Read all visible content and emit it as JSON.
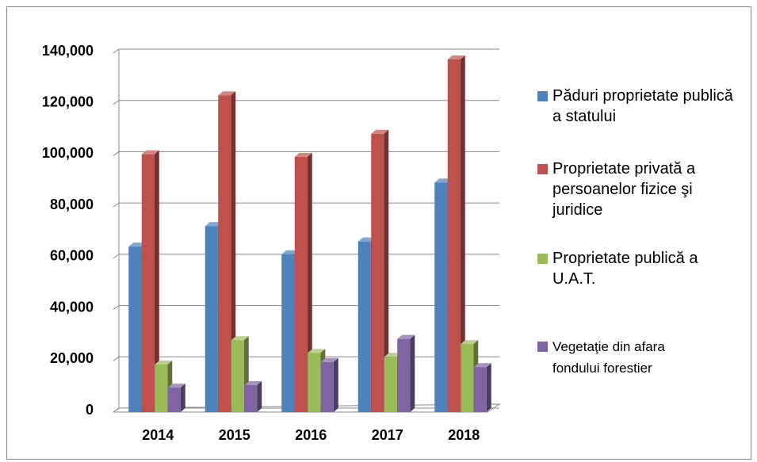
{
  "chart_data": {
    "type": "bar3d",
    "categories": [
      "2014",
      "2015",
      "2016",
      "2017",
      "2018"
    ],
    "series": [
      {
        "name": "Păduri proprietate publică a statului",
        "color": "#4f81bd",
        "values": [
          63000,
          71000,
          60000,
          65000,
          88000
        ]
      },
      {
        "name": "Proprietate privată a persoanelor fizice şi juridice",
        "color": "#c0504d",
        "values": [
          99000,
          122000,
          98000,
          107000,
          136000
        ]
      },
      {
        "name": "Proprietate publică a U.A.T.",
        "color": "#9bbb59",
        "values": [
          17000,
          26500,
          21500,
          20000,
          25000
        ]
      },
      {
        "name": "Vegetaţie din afara fondului forestier",
        "color": "#8064a2",
        "values": [
          8000,
          9000,
          18000,
          27000,
          16000
        ]
      }
    ],
    "ylim": [
      0,
      140000
    ],
    "yticks": [
      0,
      {
        "value": 20000,
        "label": "20,000"
      },
      {
        "value": 40000,
        "label": "40,000"
      },
      {
        "value": 60000,
        "label": "60,000"
      },
      {
        "value": 80000,
        "label": "80,000"
      },
      {
        "value": 100000,
        "label": "100,000"
      },
      {
        "value": 120000,
        "label": "120,000"
      },
      {
        "value": 140000,
        "label": "140,000"
      }
    ],
    "grid": true,
    "legend": "right"
  }
}
